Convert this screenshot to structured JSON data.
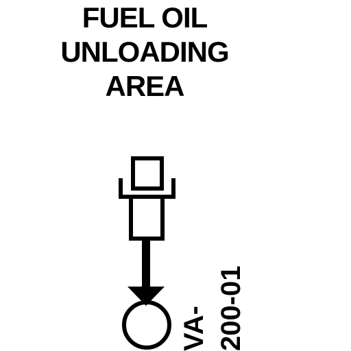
{
  "area_label": {
    "lines": [
      "FUEL OIL",
      "UNLOADING",
      "AREA"
    ]
  },
  "valve_tag": {
    "line1": "VA-",
    "line2": "200-01"
  },
  "colors": {
    "ink": "#000000",
    "background": "#ffffff"
  },
  "symbols": {
    "connection": "hose-connection-icon",
    "valve": "valve-icon"
  }
}
